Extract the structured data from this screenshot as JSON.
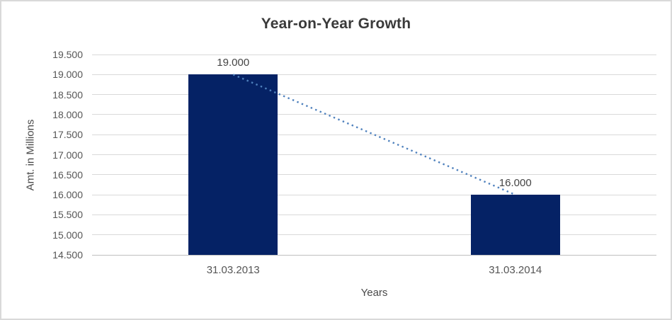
{
  "window": {
    "background": "#ffffff",
    "border_color": "#d9d9d9"
  },
  "chart_data": {
    "type": "bar",
    "title": "Year-on-Year Growth",
    "xlabel": "Years",
    "ylabel": "Amt. in Millions",
    "categories": [
      "31.03.2013",
      "31.03.2014"
    ],
    "values": [
      19000,
      16000
    ],
    "data_labels": [
      "19.000",
      "16.000"
    ],
    "y_tick_values": [
      19500,
      19000,
      18500,
      18000,
      17500,
      17000,
      16500,
      16000,
      15500,
      15000,
      14500
    ],
    "y_tick_labels": [
      "19.500",
      "19.000",
      "18.500",
      "18.000",
      "17.500",
      "17.000",
      "16.500",
      "16.000",
      "15.500",
      "15.000",
      "14.500"
    ],
    "ylim": [
      14500,
      19500
    ],
    "grid": true,
    "legend": "none",
    "trendline": {
      "type": "linear",
      "style": "dotted",
      "color": "#4f81bd",
      "from_value": 19000,
      "to_value": 16000
    },
    "colors": {
      "bar": "#052265",
      "gridline": "#d9d9d9",
      "axis_line": "#bfbfbf",
      "tick_text": "#555555",
      "title_text": "#3a3a3a"
    }
  }
}
